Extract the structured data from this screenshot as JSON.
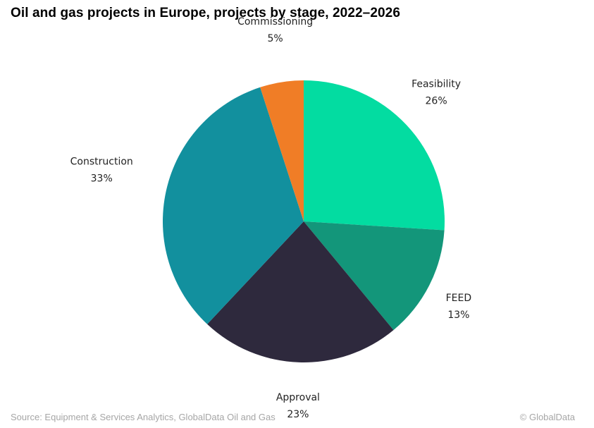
{
  "chart_data": {
    "type": "pie",
    "title": "Oil and gas projects in Europe, projects by stage, 2022–2026",
    "start": "12 o'clock",
    "direction": "clockwise",
    "slices": [
      {
        "label": "Feasibility",
        "value": 26,
        "display": "26%",
        "color": "#03dca1"
      },
      {
        "label": "FEED",
        "value": 13,
        "display": "13%",
        "color": "#13967a"
      },
      {
        "label": "Approval",
        "value": 23,
        "display": "23%",
        "color": "#2e293d"
      },
      {
        "label": "Construction",
        "value": 33,
        "display": "33%",
        "color": "#12909e"
      },
      {
        "label": "Commissioning",
        "value": 5,
        "display": "5%",
        "color": "#f07d26"
      }
    ],
    "legend": "none (labels outside slices)"
  },
  "footer": {
    "source": "Source: Equipment & Services Analytics, GlobalData Oil and Gas",
    "copyright": "© GlobalData"
  }
}
